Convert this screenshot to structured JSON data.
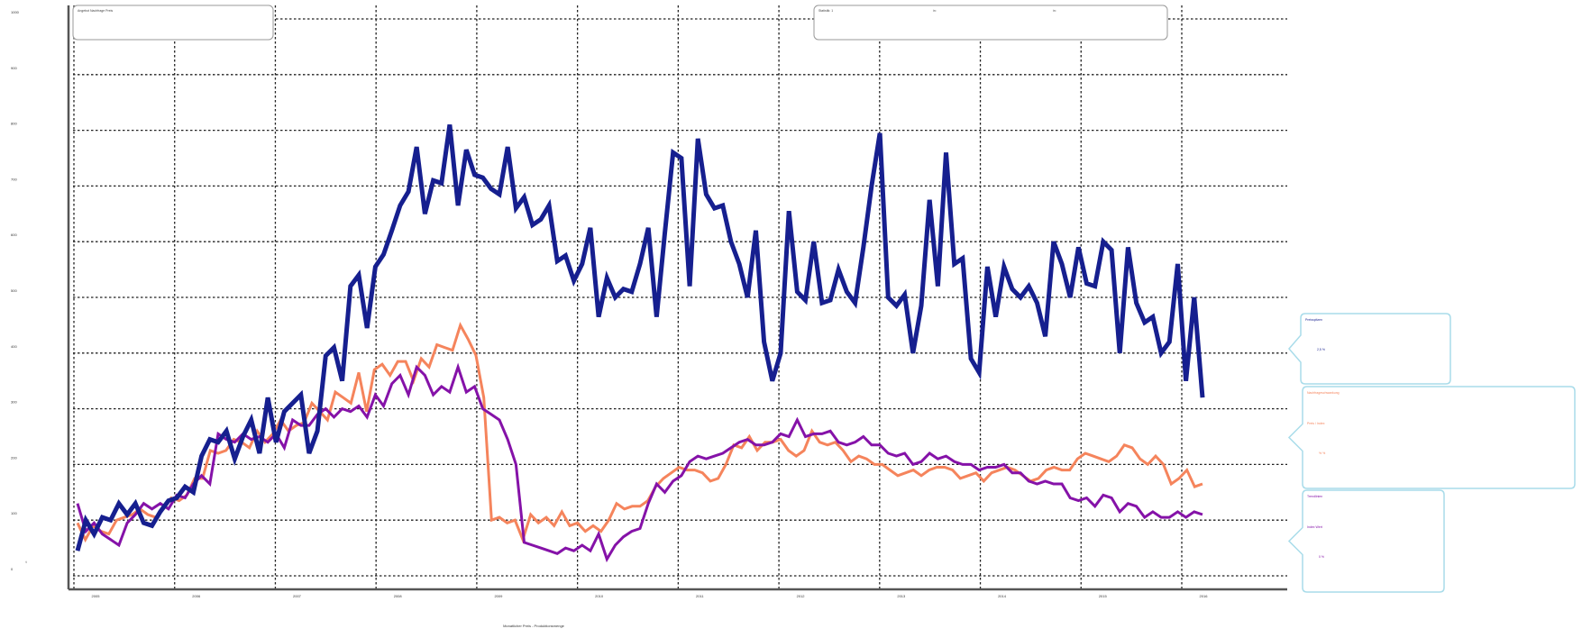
{
  "chart_data": {
    "type": "line",
    "xlabel": "Monatlicher Preis - Produktionsmenge",
    "y_unit": "t",
    "yticks": [
      0,
      100,
      200,
      300,
      400,
      500,
      600,
      700,
      800,
      900,
      1000
    ],
    "xticks": [
      "2005",
      "2006",
      "2007",
      "2008",
      "2009",
      "2010",
      "2011",
      "2012",
      "2013",
      "2014",
      "2015",
      "2016"
    ],
    "ylim": [
      0,
      1000
    ],
    "grid": true,
    "top_left_box": {
      "text": "Angebot Nachfrage Preis"
    },
    "top_right_box": {
      "texts": [
        "Statistik: 1",
        "in: ",
        "in: "
      ]
    },
    "colors": {
      "series_a": "#161f8f",
      "series_b": "#f5845c",
      "series_c": "#8512a8",
      "bubble_border": "#a9dcea"
    },
    "series": [
      {
        "name": "",
        "color": "#161f8f",
        "width": 5,
        "values": [
          45,
          100,
          75,
          105,
          100,
          130,
          110,
          130,
          95,
          90,
          115,
          135,
          140,
          160,
          150,
          215,
          245,
          240,
          260,
          210,
          250,
          280,
          220,
          320,
          240,
          295,
          310,
          325,
          220,
          260,
          395,
          410,
          350,
          520,
          540,
          445,
          555,
          577,
          620,
          665,
          690,
          770,
          650,
          710,
          705,
          810,
          665,
          765,
          720,
          715,
          695,
          685,
          770,
          660,
          680,
          630,
          640,
          665,
          565,
          575,
          530,
          560,
          625,
          465,
          535,
          500,
          515,
          510,
          560,
          625,
          465,
          615,
          760,
          750,
          520,
          785,
          685,
          660,
          665,
          600,
          560,
          500,
          620,
          420,
          350,
          400,
          655,
          510,
          495,
          600,
          490,
          495,
          550,
          510,
          490,
          590,
          700,
          795,
          500,
          485,
          505,
          400,
          485,
          675,
          520,
          760,
          560,
          570,
          390,
          365,
          555,
          465,
          555,
          515,
          500,
          520,
          490,
          430,
          600,
          560,
          500,
          590,
          525,
          520,
          600,
          585,
          400,
          590,
          490,
          455,
          465,
          400,
          420,
          560,
          350,
          500,
          320
        ]
      },
      {
        "name": "",
        "color": "#f5845c",
        "width": 3,
        "values": [
          95,
          65,
          90,
          80,
          75,
          100,
          105,
          110,
          120,
          110,
          105,
          120,
          140,
          135,
          145,
          175,
          175,
          225,
          220,
          225,
          245,
          240,
          230,
          260,
          240,
          255,
          280,
          260,
          270,
          275,
          310,
          295,
          280,
          330,
          320,
          310,
          365,
          295,
          370,
          380,
          360,
          385,
          385,
          350,
          390,
          375,
          415,
          410,
          405,
          450,
          425,
          396,
          320,
          100,
          105,
          95,
          100,
          65,
          110,
          95,
          105,
          90,
          115,
          90,
          95,
          80,
          90,
          80,
          100,
          130,
          120,
          125,
          125,
          135,
          160,
          175,
          185,
          195,
          190,
          190,
          185,
          170,
          175,
          200,
          235,
          230,
          250,
          225,
          240,
          240,
          245,
          225,
          215,
          225,
          260,
          240,
          235,
          240,
          225,
          205,
          215,
          210,
          200,
          200,
          190,
          180,
          185,
          190,
          180,
          190,
          195,
          195,
          190,
          175,
          180,
          185,
          170,
          185,
          190,
          195,
          190,
          180,
          170,
          175,
          190,
          195,
          190,
          190,
          210,
          220,
          215,
          210,
          205,
          215,
          235,
          230,
          210,
          200,
          215,
          200,
          165,
          175,
          190,
          160,
          165
        ],
        "note": ""
      },
      {
        "name": "",
        "color": "#8512a8",
        "width": 3,
        "values": [
          130,
          80,
          95,
          75,
          65,
          55,
          95,
          110,
          130,
          120,
          130,
          120,
          145,
          140,
          165,
          180,
          165,
          255,
          245,
          240,
          255,
          245,
          250,
          240,
          255,
          230,
          280,
          270,
          270,
          290,
          300,
          285,
          300,
          295,
          305,
          285,
          325,
          305,
          345,
          360,
          325,
          375,
          360,
          325,
          340,
          330,
          375,
          330,
          340,
          300,
          290,
          280,
          245,
          200,
          60,
          55,
          50,
          45,
          40,
          50,
          45,
          55,
          45,
          75,
          30,
          55,
          70,
          80,
          85,
          130,
          165,
          150,
          170,
          180,
          205,
          215,
          210,
          215,
          220,
          230,
          240,
          245,
          235,
          235,
          240,
          255,
          250,
          280,
          250,
          255,
          255,
          260,
          240,
          235,
          240,
          250,
          235,
          235,
          220,
          215,
          220,
          200,
          205,
          220,
          210,
          215,
          205,
          200,
          200,
          190,
          195,
          195,
          200,
          185,
          185,
          170,
          165,
          170,
          165,
          165,
          140,
          135,
          140,
          125,
          145,
          140,
          115,
          130,
          125,
          105,
          115,
          105,
          105,
          115,
          105,
          115,
          110
        ]
      }
    ],
    "bubbles": [
      {
        "title": "Preisspitzen",
        "value": "2,5 %",
        "title_color": "#161f8f",
        "value_color": "#161f8f"
      },
      {
        "title": "Nachfrageschwankung",
        "subtitle": "Preis / Index",
        "value": "% %",
        "title_color": "#f5845c",
        "value_color": "#f5845c"
      },
      {
        "title": "Trendlinien",
        "subtitle": "Index Wert",
        "value": "0 %",
        "title_color": "#8512a8",
        "value_color": "#8512a8"
      }
    ]
  }
}
